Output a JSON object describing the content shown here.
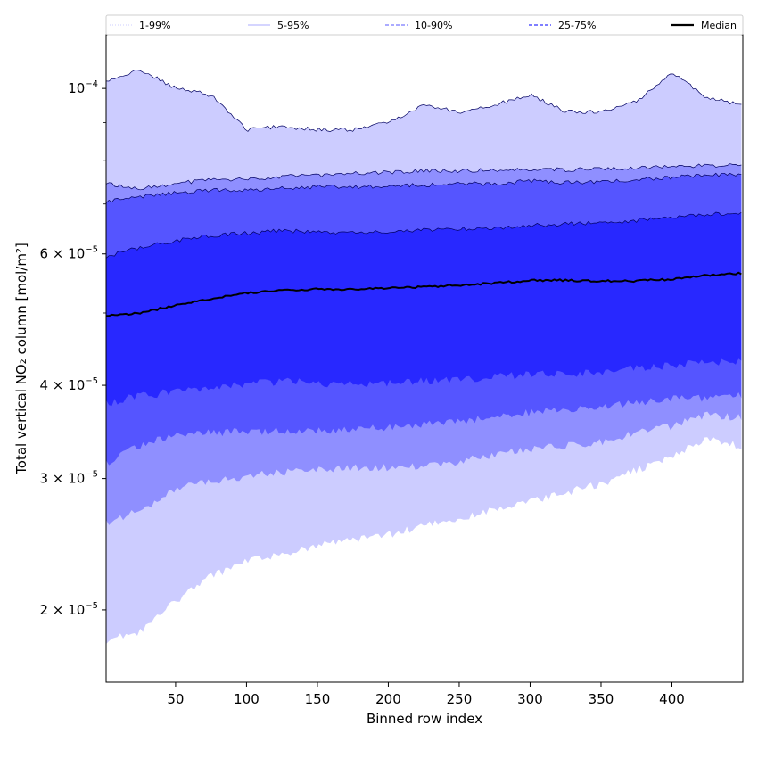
{
  "chart_data": {
    "type": "area",
    "title": "",
    "xlabel": "Binned row index",
    "ylabel": "Total vertical NO₂ column [mol/m²]",
    "xlim": [
      1,
      450
    ],
    "ylim": [
      1.6e-05,
      0.000118
    ],
    "yscale": "log",
    "x_ticks": [
      50,
      100,
      150,
      200,
      250,
      300,
      350,
      400
    ],
    "y_ticks": [
      {
        "value": 0.0001,
        "mantissa": "",
        "exponent": "−4"
      },
      {
        "value": 6e-05,
        "mantissa": "6",
        "exponent": "−5"
      },
      {
        "value": 4e-05,
        "mantissa": "4",
        "exponent": "−5"
      },
      {
        "value": 3e-05,
        "mantissa": "3",
        "exponent": "−5"
      },
      {
        "value": 2e-05,
        "mantissa": "2",
        "exponent": "−5"
      }
    ],
    "grid": false,
    "legend_position": "top",
    "legend": [
      {
        "label": "1-99%",
        "style": "dotted",
        "color": "#ccccff"
      },
      {
        "label": "5-95%",
        "style": "thin",
        "color": "#8f8fff"
      },
      {
        "label": "10-90%",
        "style": "dashed",
        "color": "#8f8fff"
      },
      {
        "label": "25-75%",
        "style": "dashed",
        "color": "#5555ff"
      },
      {
        "label": "Median",
        "style": "solid",
        "color": "#000000"
      }
    ],
    "x": [
      1,
      25,
      50,
      75,
      100,
      125,
      150,
      175,
      200,
      225,
      250,
      275,
      300,
      325,
      350,
      375,
      400,
      425,
      450
    ],
    "bands": [
      {
        "name": "1-99%",
        "color": "#ccccff",
        "upper": [
          0.000102,
          0.000106,
          0.0001,
          9.8e-05,
          8.8e-05,
          8.9e-05,
          8.8e-05,
          8.8e-05,
          9e-05,
          9.5e-05,
          9.3e-05,
          9.5e-05,
          9.8e-05,
          9.3e-05,
          9.3e-05,
          9.6e-05,
          0.000105,
          9.7e-05,
          9.5e-05
        ],
        "lower": [
          1.82e-05,
          1.87e-05,
          2.05e-05,
          2.22e-05,
          2.32e-05,
          2.38e-05,
          2.44e-05,
          2.48e-05,
          2.52e-05,
          2.59e-05,
          2.65e-05,
          2.72e-05,
          2.79e-05,
          2.87e-05,
          2.95e-05,
          3.08e-05,
          3.22e-05,
          3.4e-05,
          3.31e-05
        ]
      },
      {
        "name": "5-95%",
        "color": "#8f8fff",
        "upper": [
          7.45e-05,
          7.35e-05,
          7.45e-05,
          7.55e-05,
          7.55e-05,
          7.62e-05,
          7.65e-05,
          7.7e-05,
          7.72e-05,
          7.75e-05,
          7.75e-05,
          7.78e-05,
          7.8e-05,
          7.78e-05,
          7.8e-05,
          7.82e-05,
          7.85e-05,
          7.88e-05,
          7.9e-05
        ],
        "lower": [
          2.62e-05,
          2.72e-05,
          2.9e-05,
          2.98e-05,
          3.02e-05,
          3.06e-05,
          3.08e-05,
          3.1e-05,
          3.1e-05,
          3.12e-05,
          3.16e-05,
          3.23e-05,
          3.28e-05,
          3.32e-05,
          3.36e-05,
          3.45e-05,
          3.53e-05,
          3.65e-05,
          3.62e-05
        ]
      },
      {
        "name": "10-90%",
        "color": "#5555ff",
        "upper": [
          7.05e-05,
          7.15e-05,
          7.25e-05,
          7.3e-05,
          7.3e-05,
          7.35e-05,
          7.38e-05,
          7.38e-05,
          7.4e-05,
          7.42e-05,
          7.45e-05,
          7.45e-05,
          7.52e-05,
          7.48e-05,
          7.5e-05,
          7.55e-05,
          7.6e-05,
          7.65e-05,
          7.68e-05
        ],
        "lower": [
          3.15e-05,
          3.32e-05,
          3.43e-05,
          3.46e-05,
          3.46e-05,
          3.48e-05,
          3.48e-05,
          3.49e-05,
          3.52e-05,
          3.55e-05,
          3.58e-05,
          3.63e-05,
          3.68e-05,
          3.72e-05,
          3.75e-05,
          3.8e-05,
          3.83e-05,
          3.85e-05,
          3.88e-05
        ]
      },
      {
        "name": "25-75%",
        "color": "#2828ff",
        "upper": [
          5.95e-05,
          6.12e-05,
          6.25e-05,
          6.35e-05,
          6.4e-05,
          6.45e-05,
          6.42e-05,
          6.4e-05,
          6.42e-05,
          6.47e-05,
          6.48e-05,
          6.5e-05,
          6.55e-05,
          6.58e-05,
          6.6e-05,
          6.65e-05,
          6.72e-05,
          6.78e-05,
          6.8e-05
        ],
        "lower": [
          3.78e-05,
          3.87e-05,
          3.92e-05,
          3.98e-05,
          4.02e-05,
          4.05e-05,
          4.03e-05,
          4.02e-05,
          4.03e-05,
          4.05e-05,
          4.07e-05,
          4.1e-05,
          4.13e-05,
          4.15e-05,
          4.17e-05,
          4.21e-05,
          4.25e-05,
          4.3e-05,
          4.32e-05
        ]
      }
    ],
    "series": [
      {
        "name": "Median",
        "color": "#000000",
        "values": [
          4.95e-05,
          5e-05,
          5.12e-05,
          5.22e-05,
          5.32e-05,
          5.36e-05,
          5.38e-05,
          5.38e-05,
          5.4e-05,
          5.42e-05,
          5.45e-05,
          5.48e-05,
          5.53e-05,
          5.53e-05,
          5.52e-05,
          5.52e-05,
          5.55e-05,
          5.62e-05,
          5.65e-05
        ]
      }
    ]
  }
}
